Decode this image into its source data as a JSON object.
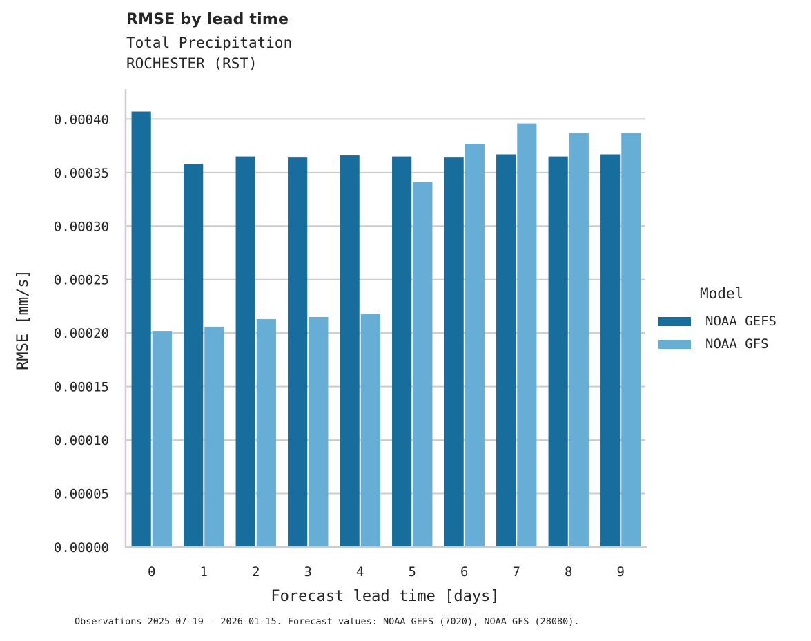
{
  "header": {
    "title": "RMSE by lead time",
    "subtitle_1": "Total Precipitation",
    "subtitle_2": "ROCHESTER (RST)"
  },
  "legend": {
    "title": "Model",
    "items": [
      {
        "label": "NOAA GEFS",
        "color": "#176d9c"
      },
      {
        "label": "NOAA GFS",
        "color": "#67aed6"
      }
    ]
  },
  "footer": {
    "note": "Observations 2025-07-19 - 2026-01-15. Forecast values: NOAA GEFS (7020), NOAA GFS (28080)."
  },
  "colors": {
    "gefs": "#176d9c",
    "gfs": "#67aed6",
    "grid": "#cccccc",
    "spine": "#cccccc"
  },
  "chart_data": {
    "type": "bar",
    "title": "RMSE by lead time",
    "subtitle": "Total Precipitation — ROCHESTER (RST)",
    "xlabel": "Forecast lead time [days]",
    "ylabel": "RMSE [mm/s]",
    "categories": [
      "0",
      "1",
      "2",
      "3",
      "4",
      "5",
      "6",
      "7",
      "8",
      "9"
    ],
    "series": [
      {
        "name": "NOAA GEFS",
        "color": "#176d9c",
        "values": [
          0.000407,
          0.000358,
          0.000365,
          0.000364,
          0.000366,
          0.000365,
          0.000364,
          0.000367,
          0.000365,
          0.000367
        ]
      },
      {
        "name": "NOAA GFS",
        "color": "#67aed6",
        "values": [
          0.000202,
          0.000206,
          0.000213,
          0.000215,
          0.000218,
          0.000341,
          0.000377,
          0.000396,
          0.000387,
          0.000387
        ]
      }
    ],
    "yticks": [
      "0.00000",
      "0.00005",
      "0.00010",
      "0.00015",
      "0.00020",
      "0.00025",
      "0.00030",
      "0.00035",
      "0.00040"
    ],
    "ylim": [
      0,
      0.000428
    ],
    "grid": "horizontal",
    "legend_position": "right",
    "legend_title": "Model",
    "footnote": "Observations 2025-07-19 - 2026-01-15. Forecast values: NOAA GEFS (7020), NOAA GFS (28080)."
  }
}
